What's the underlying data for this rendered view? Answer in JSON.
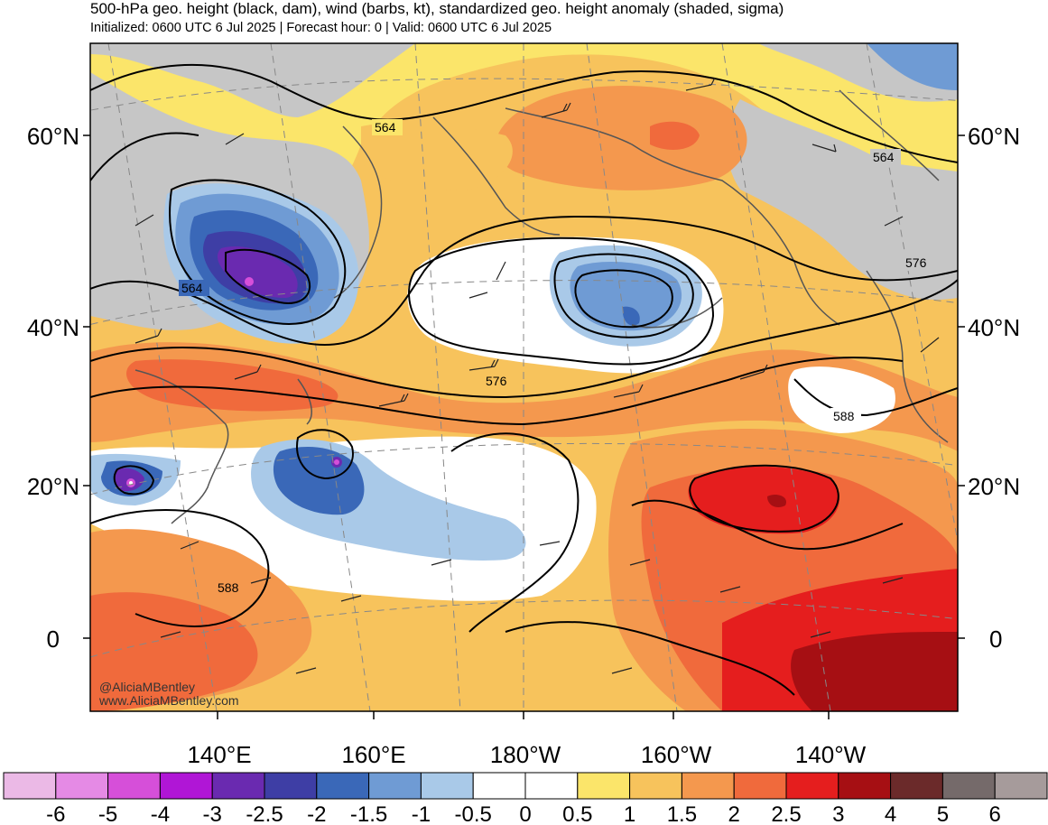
{
  "header": {
    "title": "500-hPa geo. height (black, dam), wind (barbs, kt), standardized geo. height anomaly (shaded, sigma)",
    "subtitle": "Initialized: 0600 UTC 6 Jul 2025 | Forecast hour: 0 | Valid: 0600 UTC 6 Jul 2025"
  },
  "map": {
    "lat_labels": [
      "60°N",
      "40°N",
      "20°N",
      "0"
    ],
    "lon_labels": [
      "140°E",
      "160°E",
      "180°W",
      "160°W",
      "140°W"
    ],
    "contour_labels": [
      "564",
      "564",
      "564",
      "576",
      "576",
      "588",
      "588"
    ],
    "credit_line1": "@AliciaMBentley",
    "credit_line2": "www.AliciaMBentley.com"
  },
  "colorbar": {
    "labels": [
      "-6",
      "-5",
      "-4",
      "-3",
      "-2.5",
      "-2",
      "-1.5",
      "-1",
      "-0.5",
      "0",
      "0.5",
      "1",
      "1.5",
      "2",
      "2.5",
      "3",
      "4",
      "5",
      "6"
    ],
    "colors": [
      "#ebb9e6",
      "#e58ae5",
      "#d64fd9",
      "#b016d6",
      "#6a2ab0",
      "#3e3ea5",
      "#3a68b8",
      "#6f9bd4",
      "#a9c9e8",
      "#ffffff",
      "#ffffff",
      "#fbe56a",
      "#f7c35c",
      "#f4984e",
      "#f06a3c",
      "#e51e1e",
      "#a60f13",
      "#6b2a2a",
      "#756a6a",
      "#a69b9b"
    ]
  }
}
